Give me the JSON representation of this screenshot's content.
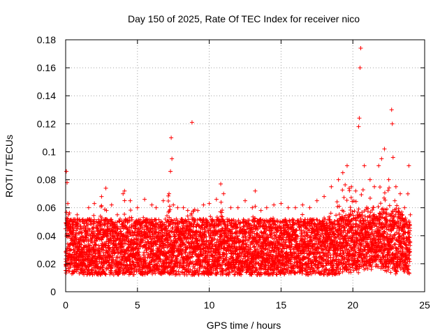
{
  "chart_data": {
    "type": "scatter",
    "title": "Day 150 of 2025, Rate Of TEC Index for receiver nico",
    "xlabel": "GPS time / hours",
    "ylabel": "ROTI / TECUs",
    "xlim": [
      0,
      25
    ],
    "ylim": [
      0,
      0.18
    ],
    "x_ticks": [
      0,
      5,
      10,
      15,
      20,
      25
    ],
    "x_tick_labels": [
      "0",
      "5",
      "10",
      "15",
      "20",
      "25"
    ],
    "y_ticks": [
      0,
      0.02,
      0.04,
      0.06,
      0.08,
      0.1,
      0.12,
      0.14,
      0.16,
      0.18
    ],
    "y_tick_labels": [
      "0",
      "0.02",
      "0.04",
      "0.06",
      "0.08",
      "0.1",
      "0.12",
      "0.14",
      "0.16",
      "0.18"
    ],
    "grid": true,
    "marker": "+",
    "color": "#ff0000",
    "series": [
      {
        "name": "ROTI",
        "x": [
          0.05,
          0.1,
          0.15,
          0.2,
          0.3,
          0.5,
          0.8,
          1.2,
          1.6,
          2.0,
          2.5,
          2.8,
          3.2,
          3.6,
          4.0,
          4.1,
          4.5,
          5.0,
          5.5,
          6.0,
          6.3,
          6.8,
          7.2,
          7.3,
          7.35,
          7.4,
          7.5,
          7.8,
          8.2,
          8.5,
          8.8,
          9.2,
          9.6,
          10.0,
          10.5,
          10.8,
          11.0,
          11.5,
          12.0,
          12.5,
          13.0,
          13.2,
          13.6,
          14.0,
          14.5,
          15.0,
          15.5,
          16.0,
          16.5,
          17.0,
          17.5,
          18.0,
          18.5,
          19.0,
          19.3,
          19.6,
          19.9,
          20.2,
          20.4,
          20.45,
          20.5,
          20.55,
          20.8,
          21.2,
          21.5,
          21.8,
          22.0,
          22.2,
          22.5,
          22.7,
          22.75,
          22.8,
          23.0,
          23.3,
          23.6,
          23.9,
          24.0
        ],
        "y": [
          0.086,
          0.078,
          0.063,
          0.055,
          0.05,
          0.048,
          0.055,
          0.05,
          0.06,
          0.063,
          0.068,
          0.074,
          0.062,
          0.055,
          0.07,
          0.072,
          0.065,
          0.06,
          0.066,
          0.062,
          0.06,
          0.065,
          0.07,
          0.086,
          0.11,
          0.095,
          0.062,
          0.06,
          0.06,
          0.058,
          0.121,
          0.058,
          0.062,
          0.063,
          0.066,
          0.077,
          0.07,
          0.06,
          0.06,
          0.065,
          0.06,
          0.072,
          0.058,
          0.06,
          0.062,
          0.063,
          0.06,
          0.06,
          0.062,
          0.06,
          0.065,
          0.068,
          0.075,
          0.08,
          0.085,
          0.09,
          0.075,
          0.072,
          0.118,
          0.124,
          0.16,
          0.174,
          0.09,
          0.08,
          0.075,
          0.09,
          0.095,
          0.102,
          0.08,
          0.13,
          0.12,
          0.096,
          0.075,
          0.07,
          0.06,
          0.09,
          0.055
        ]
      }
    ]
  }
}
